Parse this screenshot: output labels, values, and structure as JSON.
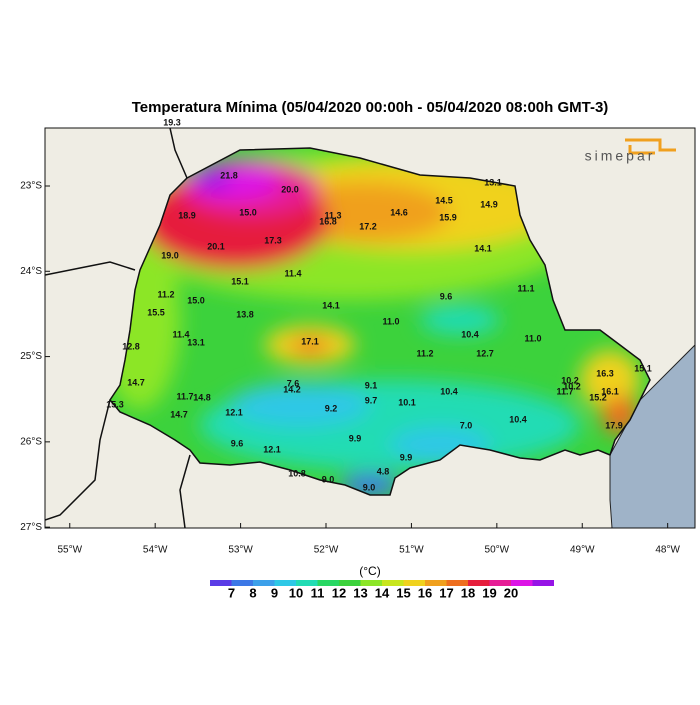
{
  "title": "Temperatura Mínima (05/04/2020 00:00h - 05/04/2020 08:00h GMT-3)",
  "logo": "simepar",
  "xlim": [
    -55.29,
    -47.68
  ],
  "ylim": [
    -27.01,
    -22.32
  ],
  "lon_ticks": [
    {
      "value": -55,
      "label": "55°W"
    },
    {
      "value": -54,
      "label": "54°W"
    },
    {
      "value": -53,
      "label": "53°W"
    },
    {
      "value": -52,
      "label": "52°W"
    },
    {
      "value": -51,
      "label": "51°W"
    },
    {
      "value": -50,
      "label": "50°W"
    },
    {
      "value": -49,
      "label": "49°W"
    },
    {
      "value": -48,
      "label": "48°W"
    }
  ],
  "lat_ticks": [
    {
      "value": -23,
      "label": "23°S"
    },
    {
      "value": -24,
      "label": "24°S"
    },
    {
      "value": -25,
      "label": "25°S"
    },
    {
      "value": -26,
      "label": "26°S"
    },
    {
      "value": -27,
      "label": "27°S"
    }
  ],
  "stations": {
    "values": [
      19.3,
      21.8,
      20.0,
      15.0,
      18.9,
      11.3,
      16.8,
      17.2,
      14.6,
      14.5,
      15.9,
      14.9,
      13.1,
      20.1,
      17.3,
      19.0,
      14.1,
      11.4,
      15.1,
      11.1,
      11.2,
      15.0,
      9.6,
      14.1,
      15.5,
      13.8,
      11.0,
      11.4,
      10.4,
      17.1,
      13.1,
      11.0,
      12.8,
      11.2,
      12.7,
      16.3,
      15.1,
      14.7,
      7.6,
      14.2,
      9.1,
      10.2,
      10.2,
      11.7,
      16.1,
      15.2,
      11.7,
      14.8,
      10.4,
      9.7,
      10.1,
      15.3,
      9.2,
      12.1,
      14.7,
      10.4,
      7.0,
      17.9,
      9.9,
      9.6,
      12.1,
      9.9,
      10.8,
      9.0,
      4.8,
      9.0
    ],
    "value_labels": [
      "19.3",
      "21.8",
      "20.0",
      "15.0",
      "18.9",
      "11.3",
      "16.8",
      "17.2",
      "14.6",
      "14.5",
      "15.9",
      "14.9",
      "13.1",
      "20.1",
      "17.3",
      "19.0",
      "14.1",
      "11.4",
      "15.1",
      "11.1",
      "11.2",
      "15.0",
      "9.6",
      "14.1",
      "15.5",
      "13.8",
      "11.0",
      "11.4",
      "10.4",
      "17.1",
      "13.1",
      "11.0",
      "12.8",
      "11.2",
      "12.7",
      "16.3",
      "15.1",
      "14.7",
      "7.6",
      "14.2",
      "9.1",
      "10.2",
      "10.2",
      "11.7",
      "16.1",
      "15.2",
      "11.7",
      "14.8",
      "10.4",
      "9.7",
      "10.1",
      "15.3",
      "9.2",
      "12.1",
      "14.7",
      "10.4",
      "7.0",
      "17.9",
      "9.9",
      "9.6",
      "12.1",
      "9.9",
      "10.8",
      "9.0",
      "4.8",
      "9.0"
    ]
  },
  "colorbar": {
    "label": "(°C)",
    "ticks": [
      7,
      8,
      9,
      10,
      11,
      12,
      13,
      14,
      15,
      16,
      17,
      18,
      19,
      20
    ],
    "colors": [
      "#5a3ce6",
      "#3c78e6",
      "#3ca0ea",
      "#2ec8e6",
      "#22dcb4",
      "#28d864",
      "#3cd23c",
      "#8ce628",
      "#c8e61e",
      "#f0d21e",
      "#f0a01e",
      "#ee6e1e",
      "#e61e3c",
      "#e61e96",
      "#dc14e6",
      "#9614e6"
    ]
  }
}
